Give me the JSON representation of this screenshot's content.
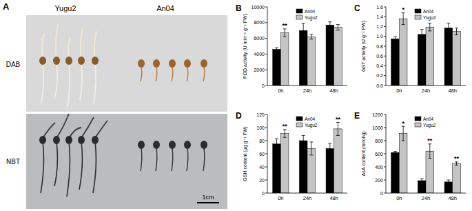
{
  "panel_a": {
    "label": "A",
    "columns": [
      "Yugu2",
      "An04"
    ],
    "rows": [
      "DAB",
      "NBT"
    ],
    "scale_bar": "1cm"
  },
  "chart_data": [
    {
      "type": "bar",
      "panel_label": "B",
      "y_label": "POD activity (U min⁻¹ g⁻¹ FW)",
      "categories": [
        "0h",
        "24h",
        "48h"
      ],
      "series": [
        {
          "name": "An04",
          "color": "#000000",
          "values": [
            4600,
            7000,
            7700
          ],
          "errors": [
            200,
            900,
            400
          ]
        },
        {
          "name": "Yugu2",
          "color": "#c4c4c4",
          "values": [
            6700,
            6200,
            7400
          ],
          "errors": [
            500,
            300,
            350
          ]
        }
      ],
      "significance": [
        "**",
        null,
        null
      ],
      "ylim": [
        0,
        10000
      ],
      "yticks": [
        0,
        2000,
        4000,
        6000,
        8000,
        10000
      ],
      "legend": "upper center"
    },
    {
      "type": "bar",
      "panel_label": "C",
      "y_label": "GST activity (U g⁻¹ FW)",
      "categories": [
        "0h",
        "24h",
        "48h"
      ],
      "series": [
        {
          "name": "An04",
          "color": "#000000",
          "values": [
            0.95,
            1.04,
            1.17
          ],
          "errors": [
            0.04,
            0.1,
            0.1
          ]
        },
        {
          "name": "Yugu2",
          "color": "#c4c4c4",
          "values": [
            1.36,
            1.19,
            1.1
          ],
          "errors": [
            0.12,
            0.08,
            0.07
          ]
        }
      ],
      "significance": [
        "*",
        null,
        null
      ],
      "ylim": [
        0,
        1.6
      ],
      "yticks": [
        {
          "value": 0,
          "label": "0.0"
        },
        {
          "value": 0.2,
          "label": "0.2"
        },
        {
          "value": 0.4,
          "label": "0.4"
        },
        {
          "value": 0.6,
          "label": "0.6"
        },
        {
          "value": 0.8,
          "label": "0.8"
        },
        {
          "value": 1,
          "label": "1.0"
        },
        {
          "value": 1.2,
          "label": "1.2"
        },
        {
          "value": 1.4,
          "label": "1.4"
        },
        {
          "value": 1.6,
          "label": "1.6"
        }
      ],
      "legend": "upper center"
    },
    {
      "type": "bar",
      "panel_label": "D",
      "y_label": "GSH content (μg g⁻¹ FW)",
      "categories": [
        "0h",
        "24h",
        "48h"
      ],
      "series": [
        {
          "name": "An04",
          "color": "#000000",
          "values": [
            75,
            80,
            68
          ],
          "errors": [
            8,
            8,
            8
          ]
        },
        {
          "name": "Yugu2",
          "color": "#c4c4c4",
          "values": [
            91,
            68,
            98
          ],
          "errors": [
            6,
            10,
            10
          ]
        }
      ],
      "significance": [
        "**",
        null,
        "**"
      ],
      "ylim": [
        0,
        120
      ],
      "yticks": [
        0,
        20,
        40,
        60,
        80,
        100,
        120
      ],
      "legend": "upper center"
    },
    {
      "type": "bar",
      "panel_label": "E",
      "y_label": "AsA content (nmol/g)",
      "categories": [
        "0h",
        "24h",
        "48h"
      ],
      "series": [
        {
          "name": "An04",
          "color": "#000000",
          "values": [
            620,
            190,
            170
          ],
          "errors": [
            15,
            30,
            30
          ]
        },
        {
          "name": "Yugu2",
          "color": "#c4c4c4",
          "values": [
            910,
            640,
            450
          ],
          "errors": [
            110,
            110,
            25
          ]
        }
      ],
      "significance": [
        "*",
        "**",
        "**"
      ],
      "ylim": [
        0,
        1200
      ],
      "yticks": [
        0,
        200,
        400,
        600,
        800,
        1000,
        1200
      ],
      "legend": "upper center"
    }
  ]
}
